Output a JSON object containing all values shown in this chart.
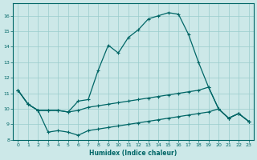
{
  "xlabel": "Humidex (Indice chaleur)",
  "ylabel": "",
  "xlim": [
    -0.5,
    23.5
  ],
  "ylim": [
    8,
    16.8
  ],
  "yticks": [
    8,
    9,
    10,
    11,
    12,
    13,
    14,
    15,
    16
  ],
  "xticks": [
    0,
    1,
    2,
    3,
    4,
    5,
    6,
    7,
    8,
    9,
    10,
    11,
    12,
    13,
    14,
    15,
    16,
    17,
    18,
    19,
    20,
    21,
    22,
    23
  ],
  "bg_color": "#cce8e8",
  "grid_color": "#99cccc",
  "line_color": "#006666",
  "line_main_x": [
    0,
    1,
    2,
    3,
    4,
    5,
    6,
    7,
    8,
    9,
    10,
    11,
    12,
    13,
    14,
    15,
    16,
    17,
    18,
    19,
    20,
    21,
    22,
    23
  ],
  "line_main_y": [
    11.2,
    10.3,
    9.9,
    9.9,
    9.9,
    9.8,
    10.5,
    10.6,
    12.5,
    14.1,
    13.6,
    14.6,
    15.1,
    15.8,
    16.0,
    16.2,
    16.1,
    14.8,
    13.0,
    11.4,
    10.0,
    9.4,
    9.7,
    9.2
  ],
  "line_mid_x": [
    0,
    1,
    2,
    3,
    4,
    5,
    6,
    7,
    8,
    9,
    10,
    11,
    12,
    13,
    14,
    15,
    16,
    17,
    18,
    19,
    20,
    21,
    22,
    23
  ],
  "line_mid_y": [
    11.2,
    10.3,
    9.9,
    9.9,
    9.9,
    9.8,
    9.9,
    10.1,
    10.2,
    10.3,
    10.4,
    10.5,
    10.6,
    10.7,
    10.8,
    10.9,
    11.0,
    11.1,
    11.2,
    11.4,
    10.0,
    9.4,
    9.7,
    9.2
  ],
  "line_bot_x": [
    0,
    1,
    2,
    3,
    4,
    5,
    6,
    7,
    8,
    9,
    10,
    11,
    12,
    13,
    14,
    15,
    16,
    17,
    18,
    19,
    20,
    21,
    22,
    23
  ],
  "line_bot_y": [
    11.2,
    10.3,
    9.9,
    8.5,
    8.6,
    8.5,
    8.3,
    8.6,
    8.7,
    8.8,
    8.9,
    9.0,
    9.1,
    9.2,
    9.3,
    9.4,
    9.5,
    9.6,
    9.7,
    9.8,
    10.0,
    9.4,
    9.7,
    9.2
  ]
}
